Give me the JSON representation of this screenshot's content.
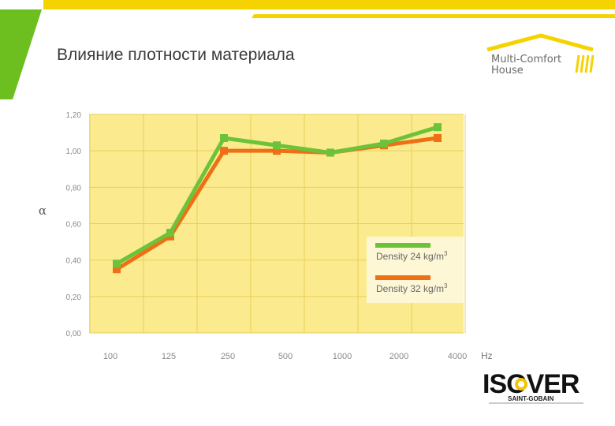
{
  "header": {
    "title": "Влияние плотности материала"
  },
  "colors": {
    "yellow_bar": "#f5d300",
    "green_bar": "#6cbf1e",
    "plot_bg": "#fbeb8e",
    "grid": "#e8cf58",
    "series_green": "#6cc33a",
    "series_orange": "#ef6f16"
  },
  "logos": {
    "multi_comfort_line1": "Multi-Comfort",
    "multi_comfort_line2": "House",
    "isover_word": "ISOVER",
    "isover_sub": "SAINT-GOBAIN"
  },
  "chart_data": {
    "type": "line",
    "categories": [
      "100",
      "125",
      "250",
      "500",
      "1000",
      "2000",
      "4000"
    ],
    "ylabel": "α",
    "xlabel": "Hz",
    "ylim": [
      0,
      1.2
    ],
    "yticks": [
      "0,00",
      "0,20",
      "0,40",
      "0,60",
      "0,80",
      "1,00",
      "1,20"
    ],
    "grid": true,
    "legend_position": "inside-right",
    "series": [
      {
        "name": "Density 24 kg/m",
        "name_sup": "3",
        "color": "#6cc33a",
        "values": [
          0.38,
          0.55,
          1.07,
          1.03,
          0.99,
          1.04,
          1.13
        ]
      },
      {
        "name": "Density 32 kg/m",
        "name_sup": "3",
        "color": "#ef6f16",
        "values": [
          0.35,
          0.53,
          1.0,
          1.0,
          0.99,
          1.03,
          1.07
        ]
      }
    ]
  }
}
